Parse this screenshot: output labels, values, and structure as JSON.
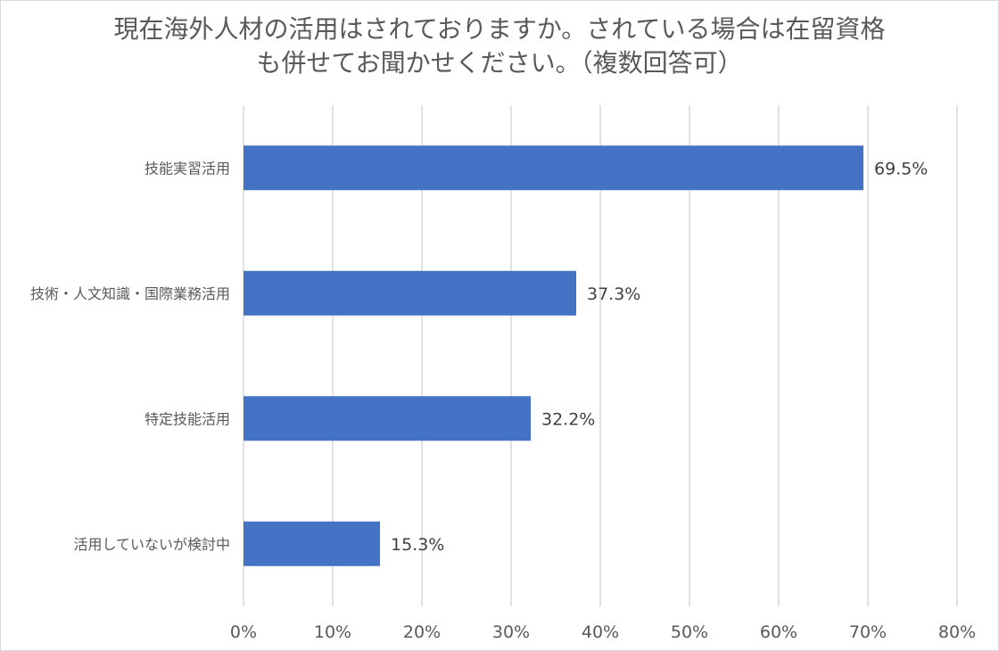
{
  "chart_data": {
    "type": "bar",
    "orientation": "horizontal",
    "title_lines": [
      "現在海外人材の活用はされておりますか。されている場合は在留資格",
      "も併せてお聞かせください。（複数回答可）"
    ],
    "categories": [
      "技能実習活用",
      "技術・人文知識・国際業務活用",
      "特定技能活用",
      "活用していないが検討中"
    ],
    "values": [
      69.5,
      37.3,
      32.2,
      15.3
    ],
    "data_labels": [
      "69.5%",
      "37.3%",
      "32.2%",
      "15.3%"
    ],
    "xlim": [
      0,
      80
    ],
    "x_ticks": [
      "0%",
      "10%",
      "20%",
      "30%",
      "40%",
      "50%",
      "60%",
      "70%",
      "80%"
    ],
    "grid": true,
    "legend": "none",
    "bar_color": "#4472c4",
    "grid_color": "#d9d9d9"
  }
}
